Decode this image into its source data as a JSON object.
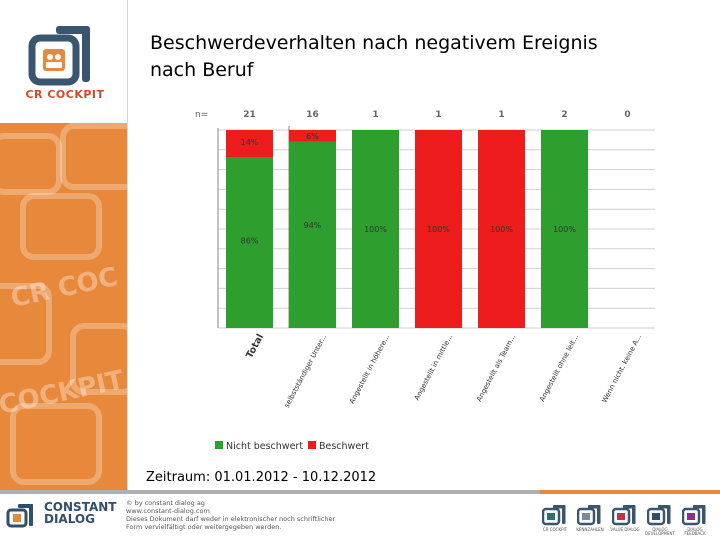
{
  "title_line1": "Beschwerdeverhalten nach negativem Ereignis",
  "title_line2": "nach Beruf",
  "period": "Zeitraum: 01.01.2012 - 10.12.2012",
  "branding": {
    "logo_text": "CR COCKPIT",
    "deco_text_1": "CR COC",
    "deco_text_2": "COCKPIT"
  },
  "footer": {
    "brand_line1": "CONSTANT",
    "brand_line2": "DIALOG",
    "legal_1": "© by constant dialog ag",
    "legal_2": "www.constant-dialog.com",
    "legal_3": "Dieses Dokument darf weder in elektronischer noch schriftlicher",
    "legal_4": "Form vervielfältigt oder weitergegeben werden.",
    "product_icons": [
      {
        "label": "CR COCKPIT",
        "color": "#2f6f6f"
      },
      {
        "label": "KENNZAHLEN",
        "color": "#7a8a9a"
      },
      {
        "label": "VALUE DIALOG",
        "color": "#c0334a"
      },
      {
        "label": "DIALOG DEVELOPMENT",
        "color": "#2f4f6f"
      },
      {
        "label": "DIALOG FEEDBACK",
        "color": "#8a2f8a"
      }
    ]
  },
  "chart_data": {
    "type": "bar",
    "stacked": true,
    "percent": true,
    "n_label": "n=",
    "categories": [
      "Total",
      "selbstständiger Unter...",
      "Angestellt in höhere...",
      "Angestellt in mittle...",
      "Angestellt als Team...",
      "Angestellt ohne leit...",
      "Wenn nicht, keine A..."
    ],
    "n": [
      "21",
      "16",
      "1",
      "1",
      "1",
      "2",
      "0"
    ],
    "series": [
      {
        "name": "Nicht beschwert",
        "color": "#2e9e2e",
        "values": [
          86,
          94,
          100,
          0,
          0,
          100,
          0
        ]
      },
      {
        "name": "Beschwert",
        "color": "#ee1c1c",
        "values": [
          14,
          6,
          0,
          100,
          100,
          0,
          0
        ]
      }
    ],
    "labels_green": [
      "86%",
      "94%",
      "100%",
      "",
      "",
      "100%",
      ""
    ],
    "labels_red": [
      "14%",
      "6%",
      "",
      "100%",
      "100%",
      "",
      ""
    ],
    "ylim": [
      0,
      100
    ],
    "grid": true,
    "legend_position": "bottom"
  }
}
